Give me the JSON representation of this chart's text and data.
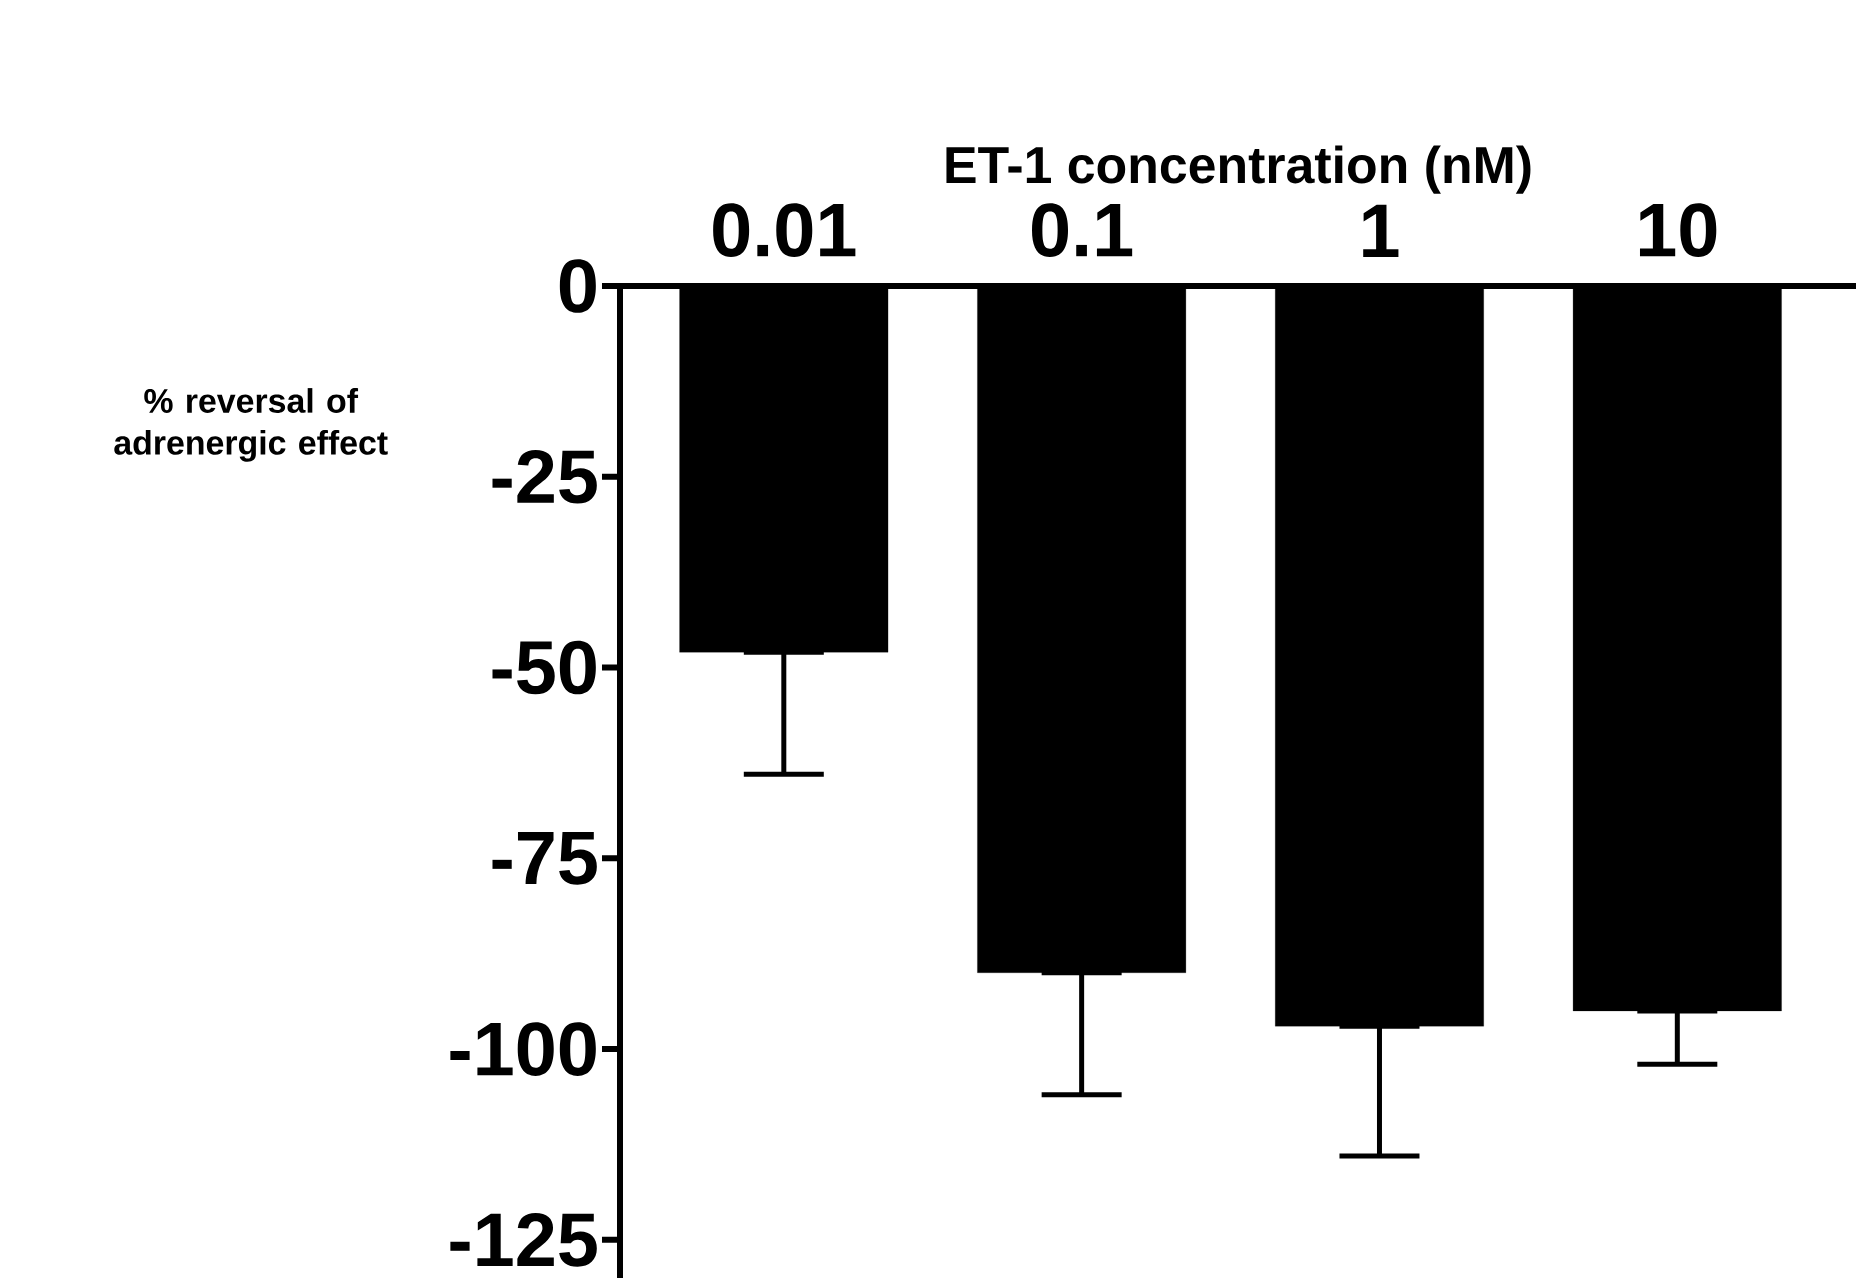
{
  "chart_data": {
    "type": "bar",
    "xlabel": "ET-1 concentration (nM)",
    "ylabel": "% reversal of adrenergic effect",
    "categories": [
      "0.01",
      "0.1",
      "1",
      "10"
    ],
    "values": [
      -48,
      -90,
      -97,
      -95
    ],
    "errors": [
      [
        -64,
        -48
      ],
      [
        -106,
        -90
      ],
      [
        -114,
        -97
      ],
      [
        -102,
        -95
      ]
    ],
    "color": "#000000",
    "ylim": [
      -130,
      0
    ],
    "yticks": [
      0,
      -25,
      -50,
      -75,
      -100,
      -125
    ],
    "grid": false
  }
}
